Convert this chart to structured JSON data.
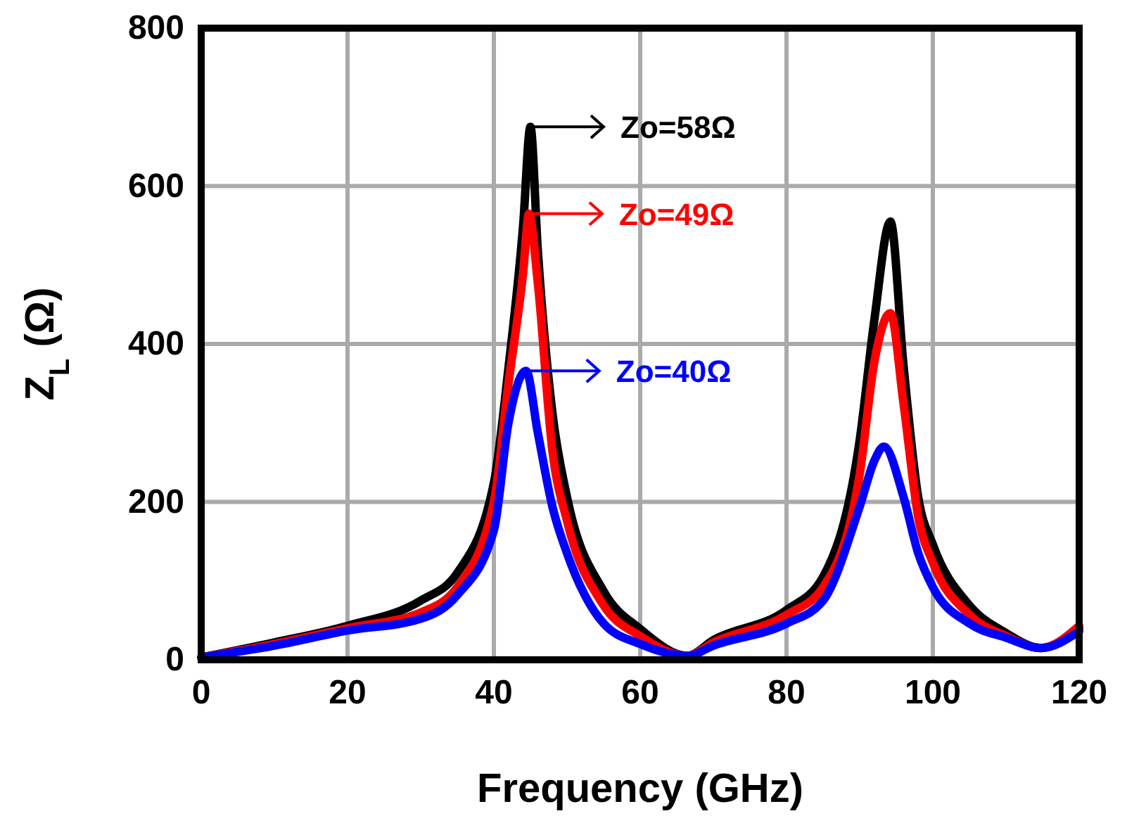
{
  "chart_data": {
    "type": "line",
    "xlabel": "Frequency (GHz)",
    "ylabel": "Z$_{L}$ (Ω)",
    "xlim": [
      0,
      120
    ],
    "ylim": [
      0,
      800
    ],
    "xticks": [
      0,
      20,
      40,
      60,
      80,
      100,
      120
    ],
    "yticks": [
      0,
      200,
      400,
      600,
      800
    ],
    "grid": true,
    "line_style": "solid",
    "marker": "none",
    "series": [
      {
        "color": "#000000",
        "x": [
          0,
          10,
          20,
          30,
          35,
          40,
          42,
          44,
          45,
          46,
          48,
          50,
          55,
          60,
          66.5,
          70,
          80,
          85,
          90,
          92,
          94.2,
          96,
          98,
          100,
          105,
          110,
          114.8,
          120
        ],
        "values": [
          3,
          22,
          43,
          75,
          110,
          224,
          370,
          550,
          675,
          520,
          313,
          206,
          87,
          39,
          5,
          25,
          63,
          105,
          278,
          430,
          555,
          372,
          206,
          146,
          69,
          34,
          15,
          40
        ]
      },
      {
        "color": "#ff0000",
        "x": [
          0,
          10,
          20,
          30,
          35,
          40,
          42,
          44,
          44.8,
          46,
          48,
          50,
          55,
          60,
          66.5,
          70,
          80,
          85,
          90,
          92,
          94.2,
          96,
          98,
          100,
          105,
          110,
          114.8,
          120
        ],
        "values": [
          3,
          20,
          40,
          60,
          92,
          200,
          350,
          490,
          565,
          478,
          265,
          176,
          69,
          30,
          5,
          22,
          57,
          92,
          235,
          377,
          439,
          324,
          181,
          123,
          57,
          30,
          15,
          43
        ]
      },
      {
        "color": "#0000ff",
        "x": [
          0,
          10,
          20,
          30,
          35,
          40,
          42,
          44.4,
          46,
          48,
          50,
          55,
          60,
          66.5,
          70,
          80,
          85,
          90,
          92,
          93.3,
          96,
          98,
          100,
          105,
          110,
          114.8,
          120
        ],
        "values": [
          3,
          18,
          37,
          52,
          82,
          164,
          300,
          366,
          288,
          194,
          135,
          46,
          20,
          5,
          18,
          46,
          75,
          194,
          252,
          270,
          206,
          135,
          92,
          46,
          28,
          15,
          36
        ]
      }
    ],
    "annotations": [
      {
        "text": "Zo=58Ω",
        "x": 45,
        "y": 675
      },
      {
        "text": "Zo=49Ω",
        "x": 44.8,
        "y": 565
      },
      {
        "text": "Zo=40Ω",
        "x": 44.4,
        "y": 366
      }
    ]
  }
}
